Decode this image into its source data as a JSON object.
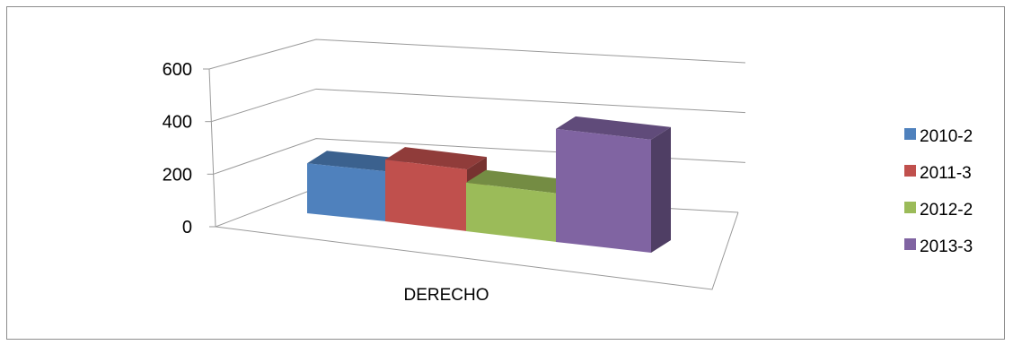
{
  "chart_data": {
    "type": "bar",
    "style": "3d-clustered-column",
    "categories": [
      "DERECHO"
    ],
    "series": [
      {
        "name": "2010-2",
        "values": [
          190
        ],
        "color": "#4f81bd"
      },
      {
        "name": "2011-3",
        "values": [
          235
        ],
        "color": "#c0504d"
      },
      {
        "name": "2012-2",
        "values": [
          185
        ],
        "color": "#9bbb59"
      },
      {
        "name": "2013-3",
        "values": [
          430
        ],
        "color": "#8064a2"
      }
    ],
    "ylim": [
      0,
      600
    ],
    "yticks": [
      "0",
      "200",
      "400",
      "600"
    ],
    "grid": true,
    "legend": "right"
  }
}
